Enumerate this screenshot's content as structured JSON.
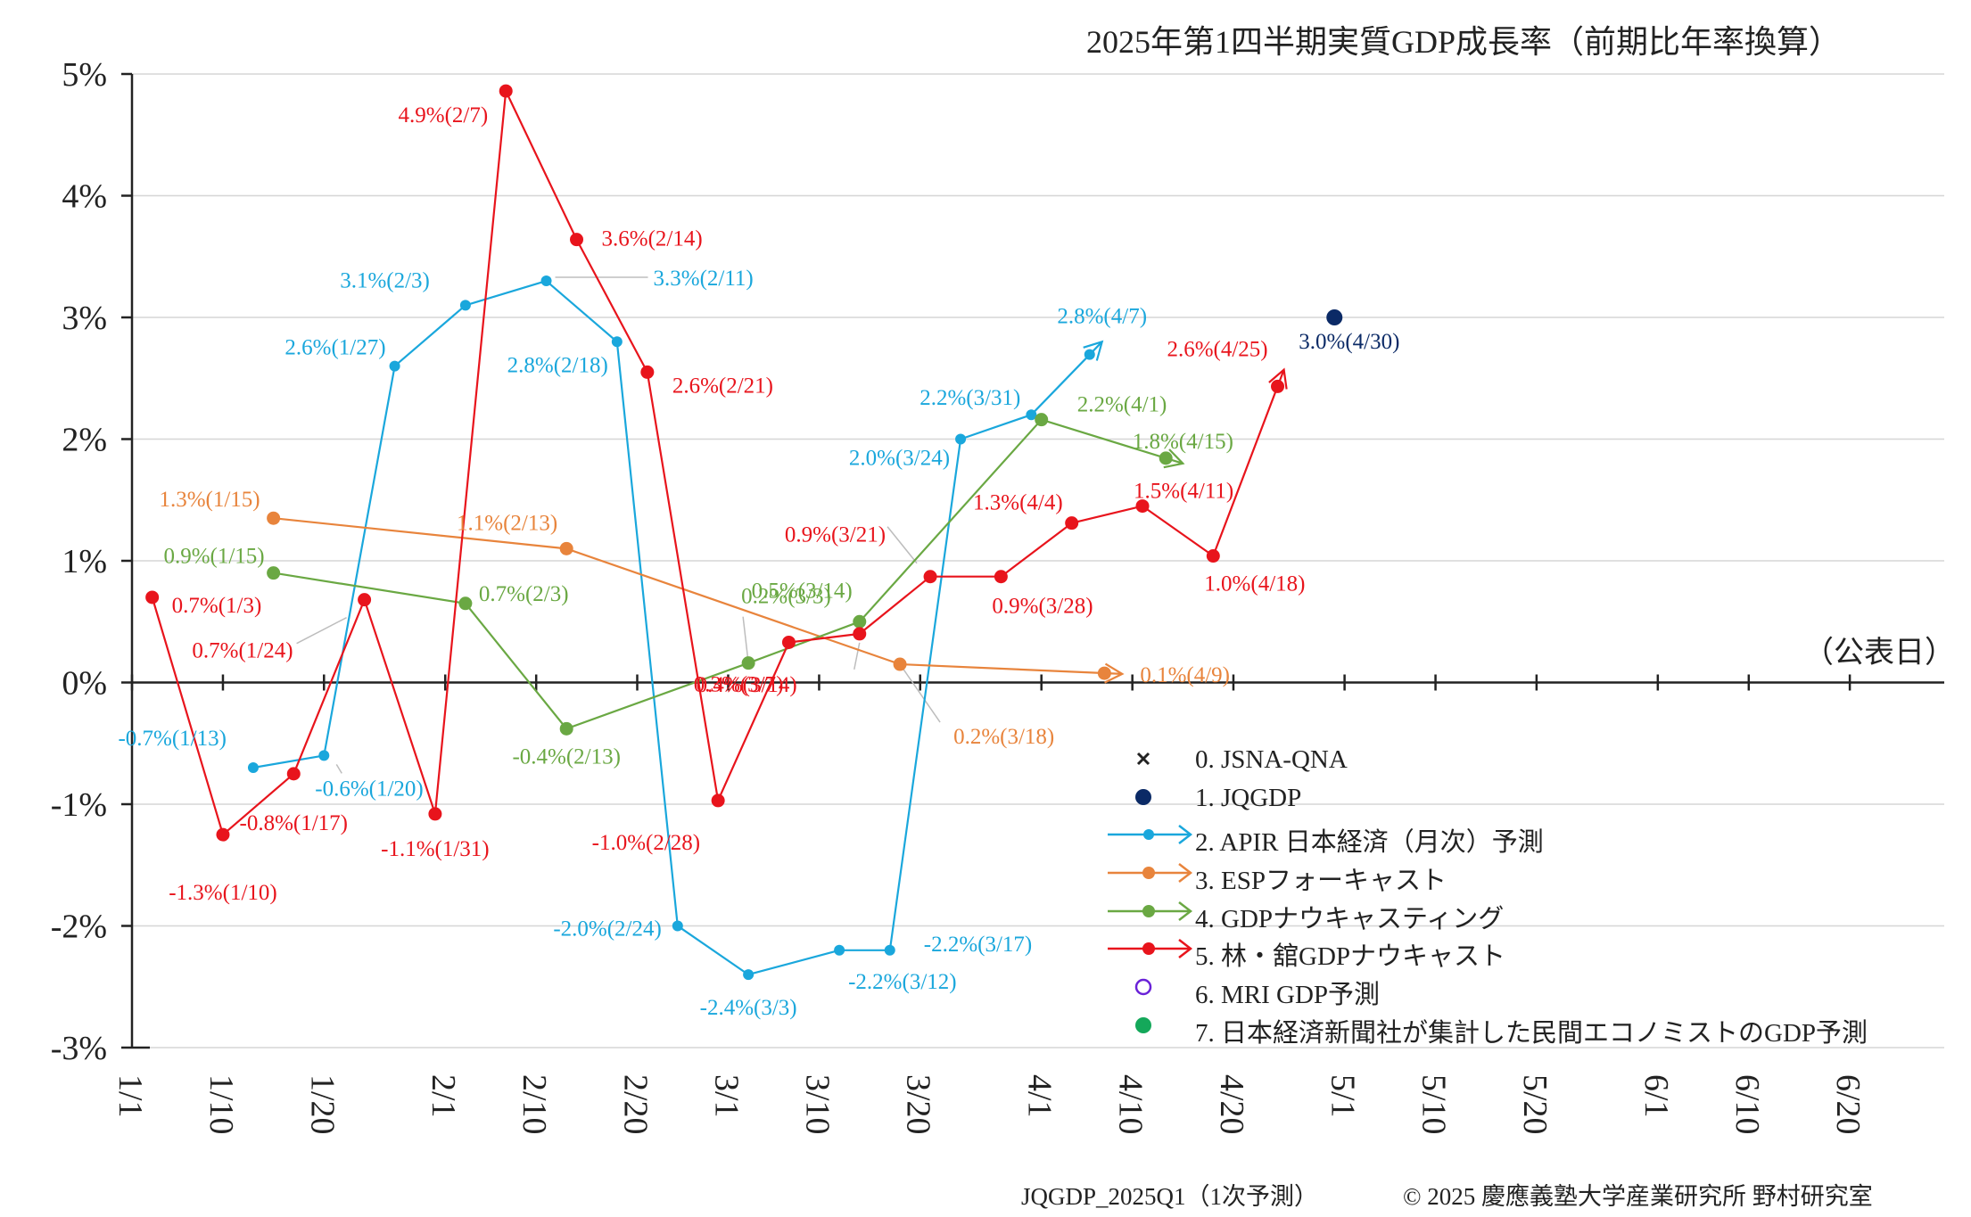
{
  "title": "2025年第1四半期実質GDP成長率（前期比年率換算）",
  "footer": {
    "left": "JQGDP_2025Q1（1次予測）",
    "right": "© 2025 慶應義塾大学産業研究所 野村研究室"
  },
  "pubdate_label": "（公表日）",
  "chart_data": {
    "type": "line",
    "title": "2025年第1四半期実質GDP成長率（前期比年率換算）",
    "xlabel": "（公表日）",
    "ylabel": "",
    "xlim": [
      "2025-01-01",
      "2025-06-25"
    ],
    "ylim": [
      -3,
      5
    ],
    "y_ticks": [
      "-3%",
      "-2%",
      "-1%",
      "0%",
      "1%",
      "2%",
      "3%",
      "4%",
      "5%"
    ],
    "x_ticks": [
      "1/1",
      "1/10",
      "1/20",
      "2/1",
      "2/10",
      "2/20",
      "3/1",
      "3/10",
      "3/20",
      "4/1",
      "4/10",
      "4/20",
      "5/1",
      "5/10",
      "5/20",
      "6/1",
      "6/10",
      "6/20"
    ],
    "grid": "horizontal",
    "legend_position": "bottom-right",
    "series": [
      {
        "name": "0. JSNA-QNA",
        "color": "#222222",
        "marker": "x",
        "points": []
      },
      {
        "name": "1. JQGDP",
        "color": "#0b2a66",
        "marker": "dot",
        "points": [
          {
            "date": "2025-04-30",
            "y": 3.0,
            "label": "3.0%(4/30)"
          }
        ]
      },
      {
        "name": "2. APIR 日本経済（月次）予測",
        "color": "#1aa7dc",
        "marker": "dot-arrow",
        "points": [
          {
            "date": "2025-01-13",
            "y": -0.7,
            "label": "-0.7%(1/13)"
          },
          {
            "date": "2025-01-20",
            "y": -0.6,
            "label": "-0.6%(1/20)"
          },
          {
            "date": "2025-01-27",
            "y": 2.6,
            "label": "2.6%(1/27)"
          },
          {
            "date": "2025-02-03",
            "y": 3.1,
            "label": "3.1%(2/3)"
          },
          {
            "date": "2025-02-11",
            "y": 3.3,
            "label": "3.3%(2/11)"
          },
          {
            "date": "2025-02-18",
            "y": 2.8,
            "label": "2.8%(2/18)"
          },
          {
            "date": "2025-02-24",
            "y": -2.0,
            "label": "-2.0%(2/24)"
          },
          {
            "date": "2025-03-03",
            "y": -2.4,
            "label": "-2.4%(3/3)"
          },
          {
            "date": "2025-03-12",
            "y": -2.2,
            "label": "-2.2%(3/12)"
          },
          {
            "date": "2025-03-17",
            "y": -2.2,
            "label": "-2.2%(3/17)"
          },
          {
            "date": "2025-03-24",
            "y": 2.0,
            "label": "2.0%(3/24)"
          },
          {
            "date": "2025-03-31",
            "y": 2.2,
            "label": "2.2%(3/31)"
          },
          {
            "date": "2025-04-07",
            "y": 2.8,
            "label": "2.8%(4/7)"
          }
        ]
      },
      {
        "name": "3. ESPフォーキャスト",
        "color": "#e8843c",
        "marker": "dot-arrow",
        "points": [
          {
            "date": "2025-01-15",
            "y": 1.35,
            "label": "1.3%(1/15)"
          },
          {
            "date": "2025-02-13",
            "y": 1.1,
            "label": "1.1%(2/13)"
          },
          {
            "date": "2025-03-18",
            "y": 0.15,
            "label": "0.2%(3/18)"
          },
          {
            "date": "2025-04-09",
            "y": 0.07,
            "label": "0.1%(4/9)"
          }
        ]
      },
      {
        "name": "4. GDPナウキャスティング",
        "color": "#6aa843",
        "marker": "dot-arrow",
        "points": [
          {
            "date": "2025-01-15",
            "y": 0.9,
            "label": "0.9%(1/15)"
          },
          {
            "date": "2025-02-03",
            "y": 0.65,
            "label": "0.7%(2/3)"
          },
          {
            "date": "2025-02-13",
            "y": -0.38,
            "label": "-0.4%(2/13)"
          },
          {
            "date": "2025-03-03",
            "y": 0.16,
            "label": "0.2%(3/3)"
          },
          {
            "date": "2025-03-14",
            "y": 0.5,
            "label": "0.5%(3/14)"
          },
          {
            "date": "2025-04-01",
            "y": 2.16,
            "label": "2.2%(4/1)"
          },
          {
            "date": "2025-04-15",
            "y": 1.8,
            "label": "1.8%(4/15)"
          }
        ]
      },
      {
        "name": "5. 林・舘GDPナウキャスト",
        "color": "#e8141c",
        "marker": "dot-arrow",
        "points": [
          {
            "date": "2025-01-03",
            "y": 0.7,
            "label": "0.7%(1/3)"
          },
          {
            "date": "2025-01-10",
            "y": -1.25,
            "label": "-1.3%(1/10)"
          },
          {
            "date": "2025-01-17",
            "y": -0.75,
            "label": "-0.8%(1/17)"
          },
          {
            "date": "2025-01-24",
            "y": 0.68,
            "label": "0.7%(1/24)"
          },
          {
            "date": "2025-01-31",
            "y": -1.08,
            "label": "-1.1%(1/31)"
          },
          {
            "date": "2025-02-07",
            "y": 4.86,
            "label": "4.9%(2/7)"
          },
          {
            "date": "2025-02-14",
            "y": 3.64,
            "label": "3.6%(2/14)"
          },
          {
            "date": "2025-02-21",
            "y": 2.55,
            "label": "2.6%(2/21)"
          },
          {
            "date": "2025-02-28",
            "y": -0.97,
            "label": "-1.0%(2/28)"
          },
          {
            "date": "2025-03-07",
            "y": 0.33,
            "label": "0.3%(3/7)"
          },
          {
            "date": "2025-03-14",
            "y": 0.4,
            "label": "0.4%(3/14)"
          },
          {
            "date": "2025-03-21",
            "y": 0.87,
            "label": "0.9%(3/21)"
          },
          {
            "date": "2025-03-28",
            "y": 0.87,
            "label": "0.9%(3/28)"
          },
          {
            "date": "2025-04-04",
            "y": 1.31,
            "label": "1.3%(4/4)"
          },
          {
            "date": "2025-04-11",
            "y": 1.45,
            "label": "1.5%(4/11)"
          },
          {
            "date": "2025-04-18",
            "y": 1.04,
            "label": "1.0%(4/18)"
          },
          {
            "date": "2025-04-25",
            "y": 2.57,
            "label": "2.6%(4/25)"
          }
        ]
      },
      {
        "name": "6. MRI GDP予測",
        "color": "#6a22d8",
        "marker": "open-circle",
        "points": []
      },
      {
        "name": "7. 日本経済新聞社が集計した民間エコノミストのGDP予測",
        "color": "#14a85a",
        "marker": "dot",
        "points": []
      }
    ]
  }
}
